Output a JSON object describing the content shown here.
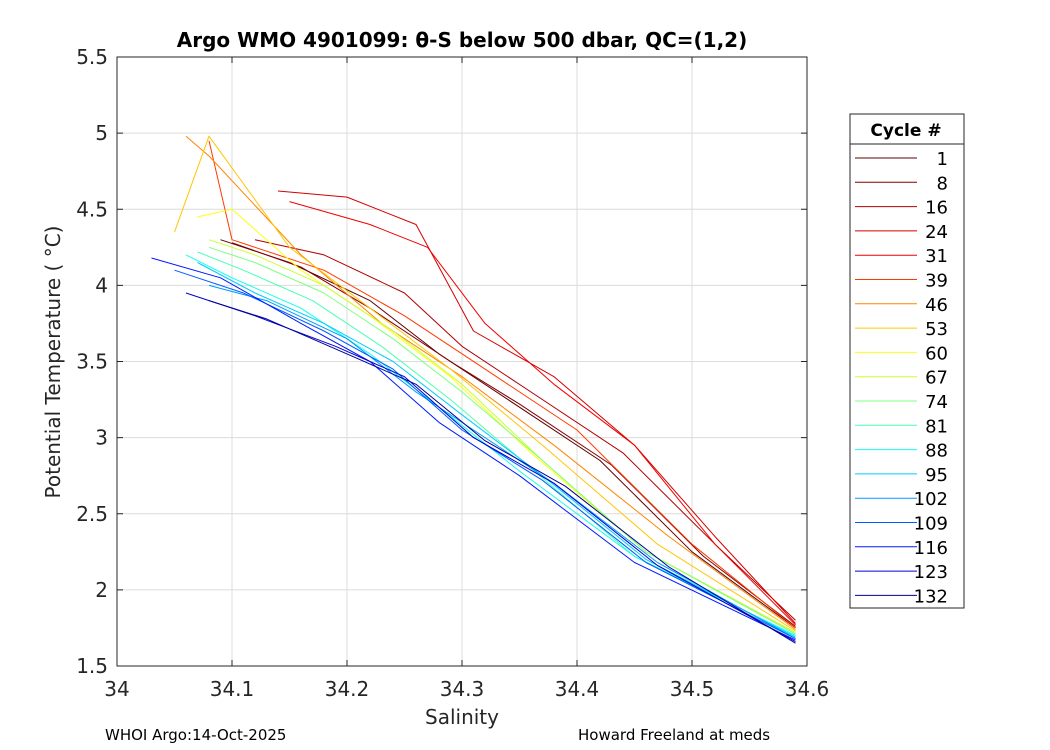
{
  "chart_data": {
    "type": "line",
    "title": "Argo WMO 4901099: θ-S below 500 dbar,  QC=(1,2)",
    "xlabel": "Salinity",
    "ylabel": "Potential Temperature ( °C)",
    "xlim": [
      34.0,
      34.6
    ],
    "ylim": [
      1.5,
      5.5
    ],
    "x_ticks": [
      34.0,
      34.1,
      34.2,
      34.3,
      34.4,
      34.5,
      34.6
    ],
    "x_tick_labels": [
      "34",
      "34.1",
      "34.2",
      "34.3",
      "34.4",
      "34.5",
      "34.6"
    ],
    "y_ticks": [
      1.5,
      2.0,
      2.5,
      3.0,
      3.5,
      4.0,
      4.5,
      5.0,
      5.5
    ],
    "y_tick_labels": [
      "1.5",
      "2",
      "2.5",
      "3",
      "3.5",
      "4",
      "4.5",
      "5",
      "5.5"
    ],
    "grid": true,
    "legend": {
      "title": "Cycle #",
      "position": "outside-right",
      "entries": [
        "1",
        "8",
        "16",
        "24",
        "31",
        "39",
        "46",
        "53",
        "60",
        "67",
        "74",
        "81",
        "88",
        "95",
        "102",
        "109",
        "116",
        "123",
        "132"
      ],
      "colors": [
        "#600000",
        "#820000",
        "#b00000",
        "#d30000",
        "#f20000",
        "#ff3a00",
        "#ff8400",
        "#ffc600",
        "#ffff10",
        "#c8ff38",
        "#7fff80",
        "#4bffb4",
        "#10ffef",
        "#00ccff",
        "#0099ff",
        "#005cff",
        "#0018ff",
        "#0000cf",
        "#00009a"
      ]
    },
    "series": [
      {
        "name": "1",
        "color": "#600000",
        "s": [
          34.09,
          34.15,
          34.22,
          34.28,
          34.34,
          34.42,
          34.5,
          34.59
        ],
        "t": [
          4.3,
          4.15,
          3.9,
          3.55,
          3.25,
          2.85,
          2.25,
          1.75
        ]
      },
      {
        "name": "8",
        "color": "#820000",
        "s": [
          34.1,
          34.16,
          34.22,
          34.29,
          34.35,
          34.43,
          34.51,
          34.59
        ],
        "t": [
          4.28,
          4.12,
          3.85,
          3.5,
          3.22,
          2.82,
          2.22,
          1.76
        ]
      },
      {
        "name": "16",
        "color": "#b00000",
        "s": [
          34.12,
          34.18,
          34.25,
          34.3,
          34.36,
          34.44,
          34.52,
          34.59
        ],
        "t": [
          4.3,
          4.2,
          3.95,
          3.6,
          3.3,
          2.9,
          2.3,
          1.8
        ]
      },
      {
        "name": "24",
        "color": "#d30000",
        "s": [
          34.14,
          34.2,
          34.26,
          34.31,
          34.38,
          34.45,
          34.52,
          34.59
        ],
        "t": [
          4.62,
          4.58,
          4.4,
          3.7,
          3.4,
          2.95,
          2.35,
          1.78
        ]
      },
      {
        "name": "31",
        "color": "#f20000",
        "s": [
          34.15,
          34.22,
          34.27,
          34.32,
          34.38,
          34.45,
          34.52,
          34.59
        ],
        "t": [
          4.55,
          4.4,
          4.25,
          3.75,
          3.35,
          2.95,
          2.3,
          1.77
        ]
      },
      {
        "name": "39",
        "color": "#ff3a00",
        "s": [
          34.08,
          34.1,
          34.18,
          34.25,
          34.32,
          34.4,
          34.5,
          34.59
        ],
        "t": [
          4.95,
          4.3,
          4.1,
          3.8,
          3.45,
          3.05,
          2.3,
          1.75
        ]
      },
      {
        "name": "46",
        "color": "#ff8400",
        "s": [
          34.06,
          34.08,
          34.16,
          34.23,
          34.3,
          34.38,
          34.48,
          34.59
        ],
        "t": [
          4.98,
          4.85,
          4.2,
          3.75,
          3.4,
          2.95,
          2.35,
          1.74
        ]
      },
      {
        "name": "53",
        "color": "#ffc600",
        "s": [
          34.05,
          34.08,
          34.15,
          34.22,
          34.29,
          34.37,
          34.47,
          34.59
        ],
        "t": [
          4.35,
          4.98,
          4.25,
          3.85,
          3.45,
          2.95,
          2.3,
          1.73
        ]
      },
      {
        "name": "60",
        "color": "#ffff10",
        "s": [
          34.07,
          34.1,
          34.16,
          34.22,
          34.29,
          34.36,
          34.46,
          34.59
        ],
        "t": [
          4.45,
          4.5,
          4.1,
          3.8,
          3.4,
          2.9,
          2.25,
          1.72
        ]
      },
      {
        "name": "67",
        "color": "#c8ff38",
        "s": [
          34.08,
          34.12,
          34.18,
          34.24,
          34.3,
          34.37,
          34.46,
          34.59
        ],
        "t": [
          4.3,
          4.2,
          4.0,
          3.7,
          3.35,
          2.85,
          2.25,
          1.72
        ]
      },
      {
        "name": "74",
        "color": "#7fff80",
        "s": [
          34.08,
          34.12,
          34.18,
          34.24,
          34.3,
          34.37,
          34.46,
          34.59
        ],
        "t": [
          4.25,
          4.15,
          3.95,
          3.65,
          3.3,
          2.85,
          2.25,
          1.71
        ]
      },
      {
        "name": "81",
        "color": "#4bffb4",
        "s": [
          34.07,
          34.11,
          34.17,
          34.23,
          34.29,
          34.36,
          34.45,
          34.59
        ],
        "t": [
          4.22,
          4.1,
          3.9,
          3.6,
          3.25,
          2.8,
          2.22,
          1.7
        ]
      },
      {
        "name": "88",
        "color": "#10ffef",
        "s": [
          34.06,
          34.1,
          34.16,
          34.22,
          34.28,
          34.35,
          34.45,
          34.59
        ],
        "t": [
          4.2,
          4.05,
          3.85,
          3.55,
          3.2,
          2.78,
          2.22,
          1.7
        ]
      },
      {
        "name": "95",
        "color": "#00ccff",
        "s": [
          34.07,
          34.12,
          34.18,
          34.24,
          34.3,
          34.37,
          34.46,
          34.59
        ],
        "t": [
          4.15,
          3.95,
          3.75,
          3.5,
          3.15,
          2.75,
          2.2,
          1.69
        ]
      },
      {
        "name": "102",
        "color": "#0099ff",
        "s": [
          34.08,
          34.13,
          34.2,
          34.26,
          34.31,
          34.38,
          34.47,
          34.59
        ],
        "t": [
          4.0,
          3.9,
          3.65,
          3.3,
          3.05,
          2.7,
          2.18,
          1.68
        ]
      },
      {
        "name": "109",
        "color": "#005cff",
        "s": [
          34.05,
          34.11,
          34.18,
          34.24,
          34.3,
          34.37,
          34.46,
          34.59
        ],
        "t": [
          4.1,
          3.95,
          3.7,
          3.45,
          3.05,
          2.72,
          2.18,
          1.68
        ]
      },
      {
        "name": "116",
        "color": "#0018ff",
        "s": [
          34.03,
          34.09,
          34.16,
          34.22,
          34.28,
          34.35,
          34.45,
          34.59
        ],
        "t": [
          4.18,
          4.05,
          3.75,
          3.5,
          3.1,
          2.75,
          2.18,
          1.67
        ]
      },
      {
        "name": "123",
        "color": "#0000cf",
        "s": [
          34.06,
          34.12,
          34.19,
          34.25,
          34.31,
          34.38,
          34.47,
          34.59
        ],
        "t": [
          3.95,
          3.8,
          3.6,
          3.4,
          3.0,
          2.7,
          2.16,
          1.66
        ]
      },
      {
        "name": "132",
        "color": "#00009a",
        "s": [
          34.08,
          34.13,
          34.2,
          34.26,
          34.32,
          34.39,
          34.48,
          34.59
        ],
        "t": [
          3.9,
          3.78,
          3.55,
          3.35,
          2.98,
          2.68,
          2.15,
          1.65
        ]
      }
    ]
  },
  "footer": {
    "left": "WHOI Argo:14-Oct-2025",
    "right": "Howard Freeland at meds"
  }
}
